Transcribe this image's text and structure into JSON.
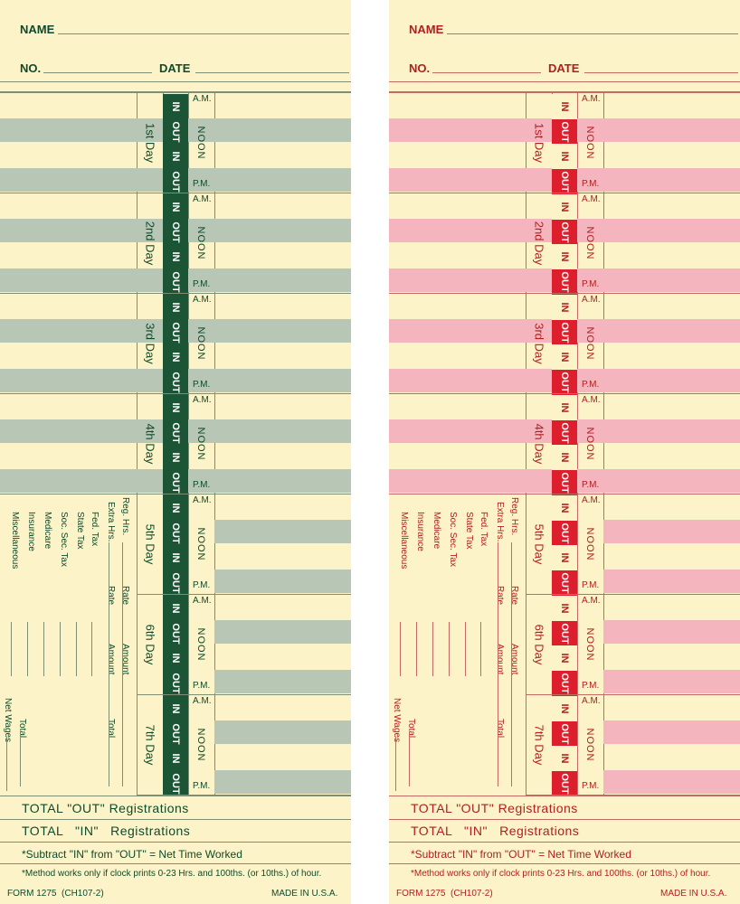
{
  "header": {
    "name_label": "NAME",
    "no_label": "NO.",
    "date_label": "DATE"
  },
  "days": [
    "1st Day",
    "2nd Day",
    "3rd Day",
    "4th Day",
    "5th Day",
    "6th Day",
    "7th Day"
  ],
  "stamp": {
    "in": "IN",
    "out": "OUT",
    "am": "A.M.",
    "noon": "NOON",
    "pm": "P.M."
  },
  "summary": {
    "col1": [
      "Reg. Hrs.",
      "Rate",
      "Amount"
    ],
    "col2": [
      "Extra Hrs.",
      "Rate",
      "Amount",
      "Total"
    ],
    "deductions": [
      "Fed. Tax",
      "State Tax",
      "Soc. Sec. Tax",
      "Medicare",
      "Insurance",
      "Miscellaneous"
    ],
    "net_wages": "Net Wages",
    "total": "Total"
  },
  "totals": {
    "out": "TOTAL \"OUT\" Registrations",
    "in": "TOTAL   \"IN\"   Registrations"
  },
  "notes": {
    "subtract": "*Subtract \"IN\" from \"OUT\" = Net Time Worked",
    "method": "*Method works only if clock prints 0-23 Hrs. and 100ths. (or 10ths.) of hour."
  },
  "footer": {
    "form": "FORM 1275  (CH107-2)",
    "made_in": "MADE IN U.S.A."
  },
  "colors": {
    "cardstock": "#fdf3c8",
    "green_text": "#0e4a2b",
    "green_band": "#b8c6b6",
    "green_block": "#1c5535",
    "red_text": "#b02020",
    "red_band": "#f4b5be",
    "red_block": "#dc1e2d"
  },
  "cards": [
    {
      "id": "green-card",
      "theme": "green"
    },
    {
      "id": "red-card",
      "theme": "red"
    }
  ]
}
